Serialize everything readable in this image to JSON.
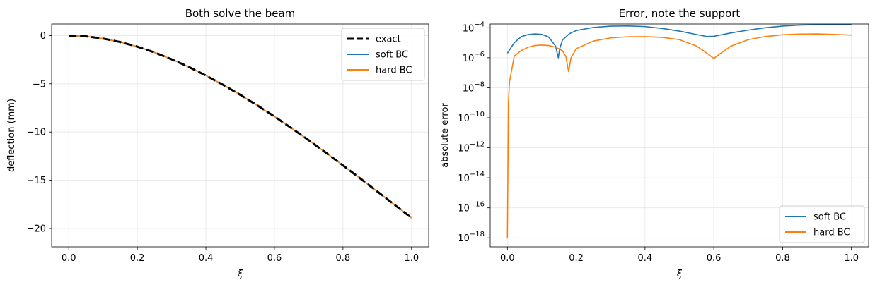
{
  "chart_data": [
    {
      "type": "line",
      "title": "Both solve the beam",
      "xlabel": "ξ",
      "ylabel": "deflection (mm)",
      "xlim": [
        -0.05,
        1.05
      ],
      "ylim": [
        -21.9,
        1.2
      ],
      "xticks": [
        0.0,
        0.2,
        0.4,
        0.6,
        0.8,
        1.0
      ],
      "xtick_labels": [
        "0.0",
        "0.2",
        "0.4",
        "0.6",
        "0.8",
        "1.0"
      ],
      "yticks": [
        0,
        -5,
        -10,
        -15,
        -20
      ],
      "ytick_labels": [
        "0",
        "−5",
        "−10",
        "−15",
        "−20"
      ],
      "grid": true,
      "legend_position": "upper right",
      "x": [
        0.0,
        0.05,
        0.1,
        0.15,
        0.2,
        0.25,
        0.3,
        0.35,
        0.4,
        0.45,
        0.5,
        0.55,
        0.6,
        0.65,
        0.7,
        0.75,
        0.8,
        0.85,
        0.9,
        0.95,
        1.0
      ],
      "series": [
        {
          "name": "exact",
          "color": "#000000",
          "dash": "dashed",
          "values": [
            0.0,
            -0.08,
            -0.31,
            -0.67,
            -1.15,
            -1.75,
            -2.46,
            -3.25,
            -4.14,
            -5.1,
            -6.14,
            -7.24,
            -8.39,
            -9.6,
            -10.85,
            -12.14,
            -13.46,
            -14.8,
            -16.16,
            -17.53,
            -18.9
          ]
        },
        {
          "name": "soft BC",
          "color": "#1f77b4",
          "dash": "solid",
          "values": [
            0.0,
            -0.08,
            -0.31,
            -0.67,
            -1.15,
            -1.75,
            -2.46,
            -3.25,
            -4.14,
            -5.1,
            -6.14,
            -7.24,
            -8.39,
            -9.6,
            -10.85,
            -12.14,
            -13.46,
            -14.8,
            -16.16,
            -17.53,
            -18.9
          ]
        },
        {
          "name": "hard BC",
          "color": "#ff7f0e",
          "dash": "solid",
          "values": [
            0.0,
            -0.08,
            -0.31,
            -0.67,
            -1.15,
            -1.75,
            -2.46,
            -3.25,
            -4.14,
            -5.1,
            -6.14,
            -7.24,
            -8.39,
            -9.6,
            -10.85,
            -12.14,
            -13.46,
            -14.8,
            -16.16,
            -17.53,
            -18.9
          ]
        }
      ]
    },
    {
      "type": "line",
      "title": "Error, note the support",
      "xlabel": "ξ",
      "ylabel": "absolute error",
      "yscale": "log",
      "xlim": [
        -0.05,
        1.05
      ],
      "ylim_log10": [
        -18.6,
        -3.75
      ],
      "xticks": [
        0.0,
        0.2,
        0.4,
        0.6,
        0.8,
        1.0
      ],
      "xtick_labels": [
        "0.0",
        "0.2",
        "0.4",
        "0.6",
        "0.8",
        "1.0"
      ],
      "yticks_log10": [
        -4,
        -6,
        -8,
        -10,
        -12,
        -14,
        -16,
        -18
      ],
      "ytick_labels": [
        {
          "base": "10",
          "exp": "−4"
        },
        {
          "base": "10",
          "exp": "−6"
        },
        {
          "base": "10",
          "exp": "−8"
        },
        {
          "base": "10",
          "exp": "−10"
        },
        {
          "base": "10",
          "exp": "−12"
        },
        {
          "base": "10",
          "exp": "−14"
        },
        {
          "base": "10",
          "exp": "−16"
        },
        {
          "base": "10",
          "exp": "−18"
        }
      ],
      "grid": true,
      "legend_position": "lower right",
      "series": [
        {
          "name": "soft BC",
          "color": "#1f77b4",
          "x": [
            0.0,
            0.02,
            0.04,
            0.06,
            0.08,
            0.1,
            0.12,
            0.14,
            0.148,
            0.152,
            0.16,
            0.18,
            0.2,
            0.25,
            0.3,
            0.35,
            0.4,
            0.45,
            0.5,
            0.55,
            0.58,
            0.6,
            0.65,
            0.7,
            0.75,
            0.8,
            0.85,
            0.9,
            0.95,
            1.0
          ],
          "values": [
            2e-06,
            1e-05,
            2.5e-05,
            3.5e-05,
            3.9e-05,
            3.6e-05,
            2.4e-05,
            6e-06,
            1e-06,
            4e-06,
            1.5e-05,
            4e-05,
            6.5e-05,
            0.000105,
            0.000128,
            0.000132,
            0.00012,
            9e-05,
            6e-05,
            3.5e-05,
            2.6e-05,
            2.7e-05,
            4.5e-05,
            7e-05,
            0.0001,
            0.00013,
            0.00015,
            0.00016,
            0.000165,
            0.000168
          ]
        },
        {
          "name": "hard BC",
          "color": "#ff7f0e",
          "x": [
            0.0,
            0.003,
            0.006,
            0.02,
            0.04,
            0.06,
            0.08,
            0.1,
            0.12,
            0.14,
            0.16,
            0.17,
            0.178,
            0.185,
            0.2,
            0.25,
            0.3,
            0.35,
            0.4,
            0.45,
            0.5,
            0.55,
            0.58,
            0.6,
            0.62,
            0.65,
            0.7,
            0.75,
            0.8,
            0.85,
            0.9,
            0.95,
            1.0
          ],
          "values": [
            1e-18,
            1e-09,
            2.5e-08,
            1.3e-06,
            3e-06,
            5e-06,
            6.5e-06,
            7e-06,
            6.5e-06,
            5e-06,
            3e-06,
            1.2e-06,
            1.2e-07,
            1e-06,
            4e-06,
            1.3e-05,
            2.1e-05,
            2.5e-05,
            2.55e-05,
            2.3e-05,
            1.6e-05,
            6e-06,
            2e-06,
            9e-07,
            2e-06,
            6e-06,
            1.6e-05,
            2.6e-05,
            3.4e-05,
            3.8e-05,
            3.9e-05,
            3.6e-05,
            3.2e-05
          ]
        }
      ]
    }
  ]
}
